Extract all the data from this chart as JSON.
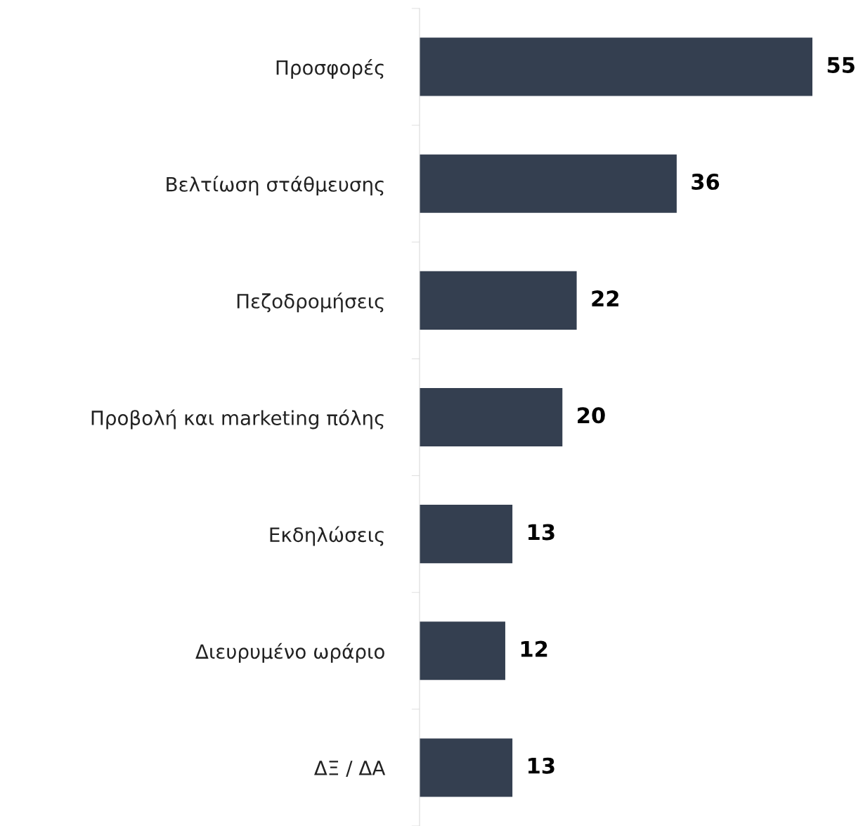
{
  "chart_data": {
    "type": "bar",
    "orientation": "horizontal",
    "categories": [
      "Προσφορές",
      "Βελτίωση στάθμευσης",
      "Πεζοδρομήσεις",
      "Προβολή και marketing πόλης",
      "Εκδηλώσεις",
      "Διευρυμένο ωράριο",
      "ΔΞ / ΔΑ"
    ],
    "values": [
      55,
      36,
      22,
      20,
      13,
      12,
      13
    ],
    "color": "#343f50",
    "data_labels": true,
    "grid": false,
    "legend": false
  }
}
